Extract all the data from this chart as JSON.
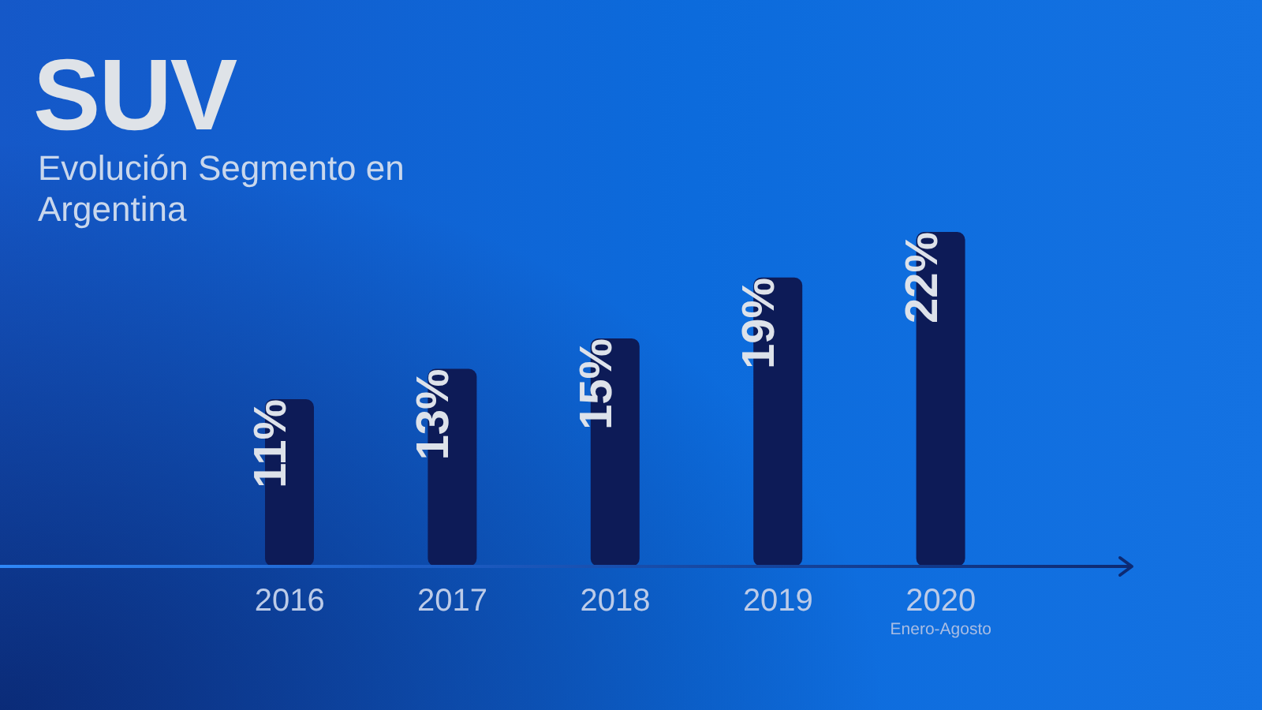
{
  "chart_data": {
    "type": "bar",
    "title": "SUV",
    "subtitle": "Evolución Segmento en Argentina",
    "categories": [
      "2016",
      "2017",
      "2018",
      "2019",
      "2020"
    ],
    "values": [
      11,
      13,
      15,
      19,
      22
    ],
    "value_labels": [
      "11%",
      "13%",
      "15%",
      "19%",
      "22%"
    ],
    "color": "#0d1b57",
    "annotations": [
      "Enero-Agosto"
    ]
  }
}
